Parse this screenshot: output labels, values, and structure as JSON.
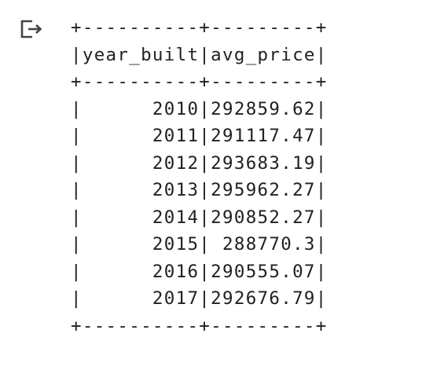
{
  "cell_output": {
    "icon": "output-redirect-icon",
    "text_color": "#212121",
    "lines": [
      "+----------+---------+",
      "|year_built|avg_price|",
      "+----------+---------+",
      "|      2010|292859.62|",
      "|      2011|291117.47|",
      "|      2012|293683.19|",
      "|      2013|295962.27|",
      "|      2014|290852.27|",
      "|      2015| 288770.3|",
      "|      2016|290555.07|",
      "|      2017|292676.79|",
      "+----------+---------+"
    ]
  }
}
